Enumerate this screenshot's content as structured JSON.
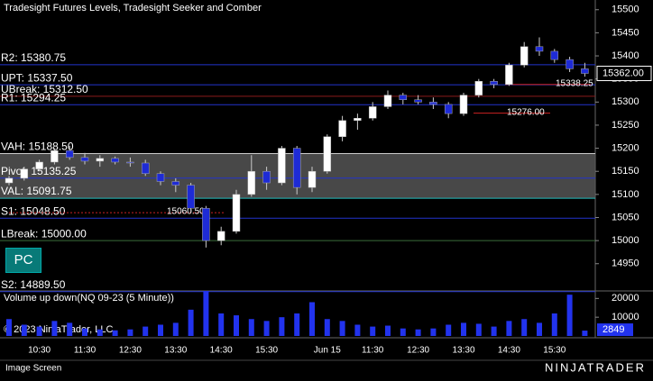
{
  "chart_data": {
    "type": "candlestick",
    "title": "Tradesight Futures Levels, Tradesight Seeker and Comber",
    "categories": [
      null,
      null,
      "10:30",
      null,
      null,
      "11:30",
      null,
      null,
      "12:30",
      null,
      null,
      "13:30",
      null,
      null,
      "14:30",
      null,
      null,
      "15:30",
      null,
      null,
      null,
      "Jun 15",
      null,
      null,
      "11:30",
      null,
      null,
      "12:30",
      null,
      null,
      "13:30",
      null,
      null,
      "14:30",
      null,
      null,
      "15:30",
      null,
      null
    ],
    "open": [
      15125,
      15135,
      15155,
      15170,
      15195,
      15180,
      15172,
      15178,
      15170,
      15168,
      15145,
      15128,
      15120,
      15070,
      15000,
      15020,
      15100,
      15150,
      15125,
      15200,
      15115,
      15150,
      15225,
      15260,
      15265,
      15290,
      15315,
      15305,
      15300,
      15295,
      15275,
      15315,
      15345,
      15338,
      15380,
      15420,
      15410,
      15392,
      15372
    ],
    "high": [
      15140,
      15160,
      15175,
      15200,
      15205,
      15190,
      15185,
      15182,
      15180,
      15175,
      15150,
      15135,
      15125,
      15075,
      15030,
      15110,
      15185,
      15160,
      15205,
      15205,
      15160,
      15230,
      15270,
      15275,
      15300,
      15325,
      15320,
      15315,
      15310,
      15300,
      15320,
      15350,
      15350,
      15385,
      15430,
      15440,
      15415,
      15398,
      15385
    ],
    "low": [
      15120,
      15130,
      15150,
      15165,
      15175,
      15165,
      15160,
      15165,
      15160,
      15140,
      15120,
      15105,
      15060,
      14985,
      14990,
      15015,
      15095,
      15110,
      15120,
      15100,
      15105,
      15145,
      15215,
      15240,
      15260,
      15285,
      15295,
      15295,
      15285,
      15265,
      15270,
      15310,
      15330,
      15335,
      15375,
      15400,
      15385,
      15365,
      15355
    ],
    "close": [
      15135,
      15155,
      15170,
      15195,
      15180,
      15172,
      15178,
      15170,
      15168,
      15145,
      15128,
      15120,
      15070,
      15000,
      15020,
      15100,
      15150,
      15125,
      15200,
      15115,
      15150,
      15225,
      15260,
      15265,
      15290,
      15315,
      15305,
      15300,
      15295,
      15275,
      15315,
      15345,
      15338,
      15380,
      15420,
      15410,
      15392,
      15372,
      15362
    ],
    "ylim": [
      14891,
      15521
    ],
    "yticks": [
      14950,
      15000,
      15050,
      15100,
      15150,
      15200,
      15250,
      15300,
      15350,
      15400,
      15450,
      15500
    ],
    "last_price": {
      "value": 15362,
      "label": "15362.00"
    },
    "up_color": "#ffffff",
    "down_color": "#1e2bd6",
    "levels": [
      {
        "label": "R2: 15380.75",
        "value": 15380.75,
        "color": "#2233cc"
      },
      {
        "label": "UPT: 15337.50",
        "value": 15337.5,
        "color": "#2233cc"
      },
      {
        "label": "UBreak: 15312.50",
        "value": 15312.5,
        "color": "#8b1a1a"
      },
      {
        "label": "R1: 15294.25",
        "value": 15294.25,
        "color": "#2233cc"
      },
      {
        "label": "VAH: 15188.50",
        "value": 15188.5,
        "color": "#cccccc"
      },
      {
        "label": "Pivot: 15135.25",
        "value": 15135.25,
        "color": "#2233cc"
      },
      {
        "label": "VAL: 15091.75",
        "value": 15091.75,
        "color": "#22bbbb"
      },
      {
        "label": "S1: 15048.50",
        "value": 15048.5,
        "color": "#2233cc"
      },
      {
        "label": "LBreak: 15000.00",
        "value": 15000,
        "color": "#3a6e3a"
      },
      {
        "label": "S2: 14889.50",
        "value": 14889.5,
        "color": "#2233cc"
      }
    ],
    "annotations": [
      {
        "label": "15060.50",
        "value": 15060.5
      },
      {
        "label": "15276.00",
        "value": 15276
      },
      {
        "label": "15338.25",
        "value": 15338.25
      }
    ],
    "volume": {
      "title": "Volume up down(NQ 09-23 (5 Minute))",
      "color": "#2233ee",
      "values": [
        9000,
        6000,
        5000,
        8000,
        7000,
        4000,
        3500,
        3000,
        3500,
        5000,
        6000,
        7000,
        14000,
        24000,
        12000,
        11000,
        9000,
        8000,
        10000,
        12000,
        18000,
        9000,
        8000,
        6000,
        5000,
        5500,
        4000,
        3500,
        4000,
        6000,
        7000,
        6500,
        5000,
        8000,
        9000,
        7000,
        12000,
        22000,
        2849
      ],
      "ylim": [
        0,
        24000
      ],
      "yticks": [
        10000,
        20000
      ],
      "last": 2849
    }
  },
  "copyright": "© 2023 NinjaTrader, LLC",
  "button": "PC",
  "status": "Image Screen",
  "logo": "NINJATRADER"
}
